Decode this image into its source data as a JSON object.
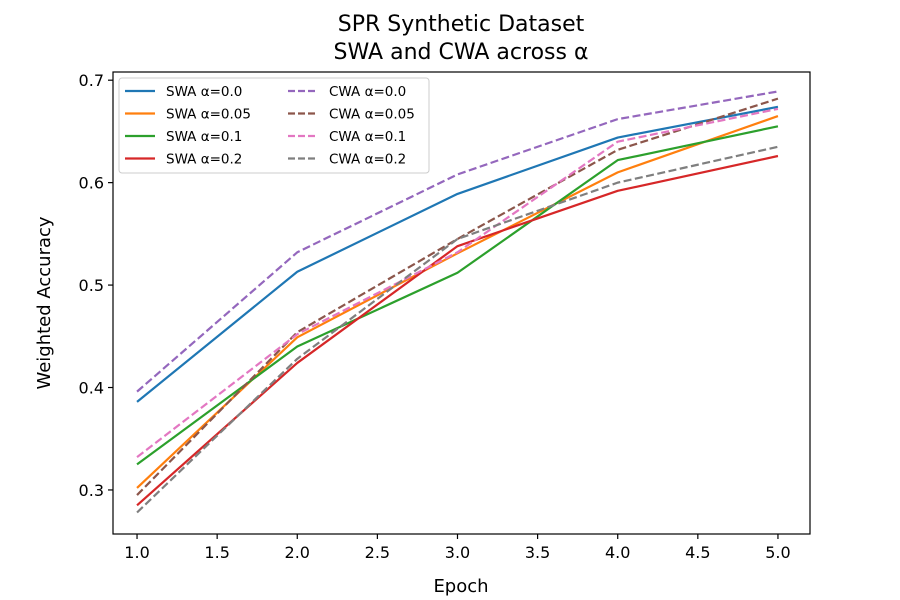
{
  "chart_data": {
    "type": "line",
    "title": "SPR Synthetic Dataset",
    "subtitle": "SWA and CWA across α",
    "xlabel": "Epoch",
    "ylabel": "Weighted Accuracy",
    "x": [
      1.0,
      2.0,
      3.0,
      4.0,
      5.0
    ],
    "xlim": [
      0.85,
      5.2
    ],
    "ylim": [
      0.257,
      0.708
    ],
    "xticks": [
      "1.0",
      "1.5",
      "2.0",
      "2.5",
      "3.0",
      "3.5",
      "4.0",
      "4.5",
      "5.0"
    ],
    "yticks": [
      "0.3",
      "0.4",
      "0.5",
      "0.6",
      "0.7"
    ],
    "grid": false,
    "legend_position": "top-left",
    "series": [
      {
        "name": "SWA α=0.0",
        "style": "solid",
        "color": "#1f77b4",
        "values": [
          0.386,
          0.513,
          0.589,
          0.644,
          0.674
        ]
      },
      {
        "name": "SWA α=0.05",
        "style": "solid",
        "color": "#ff7f0e",
        "values": [
          0.302,
          0.449,
          0.531,
          0.61,
          0.665
        ]
      },
      {
        "name": "SWA α=0.1",
        "style": "solid",
        "color": "#2ca02c",
        "values": [
          0.325,
          0.44,
          0.512,
          0.622,
          0.655
        ]
      },
      {
        "name": "SWA α=0.2",
        "style": "solid",
        "color": "#d62728",
        "values": [
          0.285,
          0.424,
          0.538,
          0.592,
          0.626
        ]
      },
      {
        "name": "CWA α=0.0",
        "style": "dashed",
        "color": "#9467bd",
        "values": [
          0.396,
          0.532,
          0.608,
          0.662,
          0.689
        ]
      },
      {
        "name": "CWA α=0.05",
        "style": "dashed",
        "color": "#8c564b",
        "values": [
          0.295,
          0.454,
          0.545,
          0.632,
          0.682
        ]
      },
      {
        "name": "CWA α=0.1",
        "style": "dashed",
        "color": "#e377c2",
        "values": [
          0.332,
          0.452,
          0.532,
          0.64,
          0.672
        ]
      },
      {
        "name": "CWA α=0.2",
        "style": "dashed",
        "color": "#7f7f7f",
        "values": [
          0.278,
          0.428,
          0.545,
          0.6,
          0.635
        ]
      }
    ]
  }
}
